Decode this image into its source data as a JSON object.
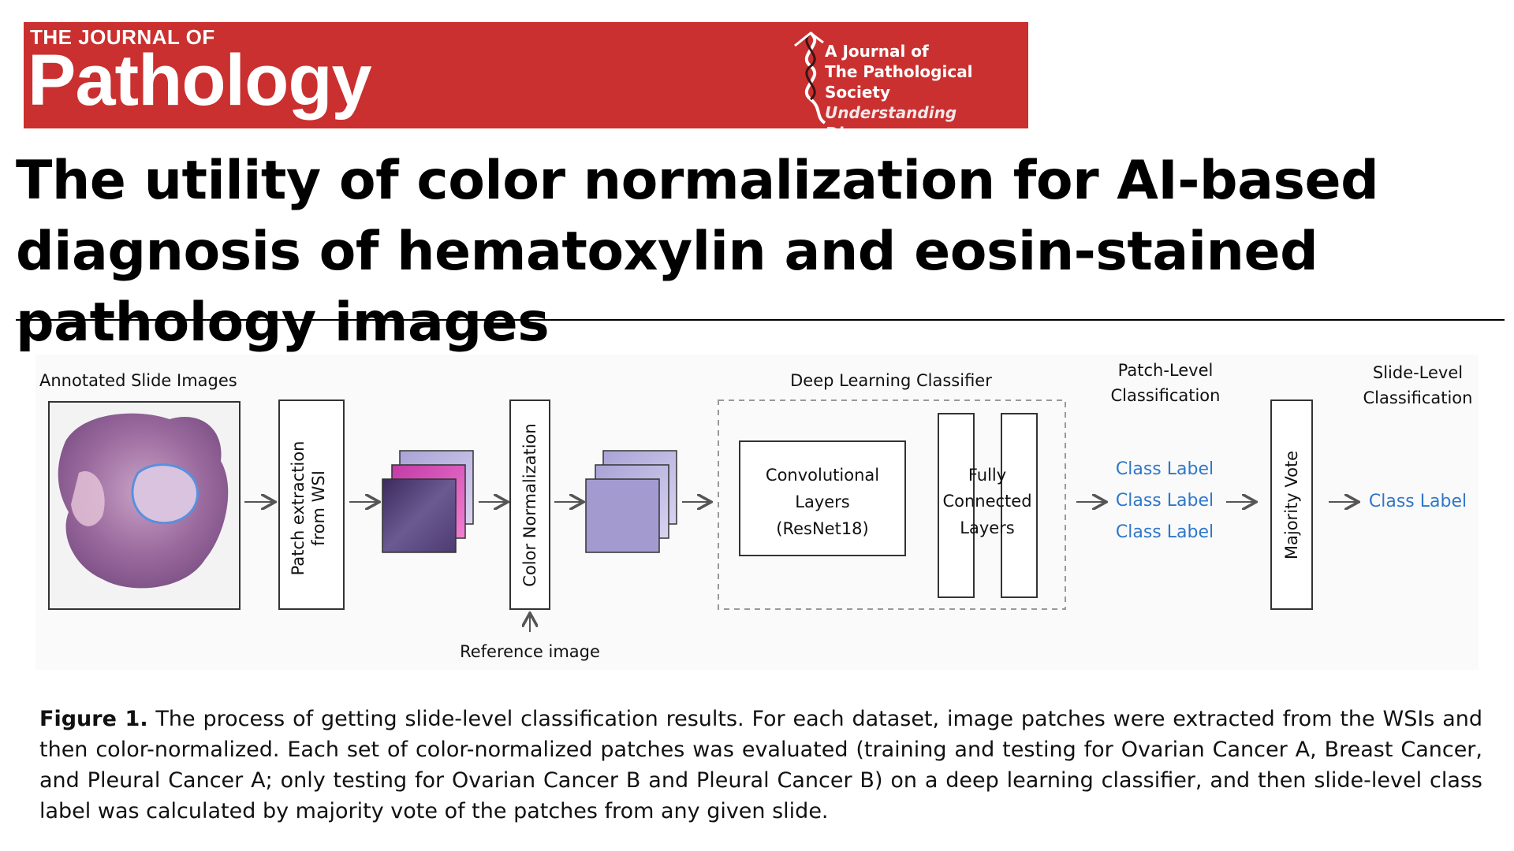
{
  "header": {
    "kicker": "THE JOURNAL OF",
    "journal_name": "Pathology",
    "society_line1": "A Journal of",
    "society_line2": "The Pathological Society",
    "society_tagline": "Understanding Disease",
    "brand_color": "#c9302f"
  },
  "article": {
    "title": "The utility of color normalization for AI-based diagnosis of hematoxylin and eosin-stained pathology images"
  },
  "figure": {
    "annotated_slide_label": "Annotated Slide Images",
    "patch_extraction_line1": "Patch extraction",
    "patch_extraction_line2": "from WSI",
    "color_normalization": "Color Normalization",
    "reference_image": "Reference image",
    "classifier_title": "Deep Learning Classifier",
    "conv_line1": "Convolutional",
    "conv_line2": "Layers",
    "conv_line3": "(ResNet18)",
    "fc_line1": "Fully",
    "fc_line2": "Connected",
    "fc_line3": "Layers",
    "patch_level_line1": "Patch-Level",
    "patch_level_line2": "Classification",
    "patch_class_labels": [
      "Class Label",
      "Class Label",
      "Class Label"
    ],
    "majority_vote": "Majority Vote",
    "slide_level_line1": "Slide-Level",
    "slide_level_line2": "Classification",
    "slide_class_label": "Class Label",
    "label_color": "#2f77c9"
  },
  "caption": {
    "lead": "Figure 1.",
    "text": " The process of getting slide-level classification results. For each dataset, image patches were extracted from the WSIs and then color-normalized. Each set of color-normalized patches was evaluated (training and testing for Ovarian Cancer A, Breast Cancer, and Pleural Cancer A; only testing for Ovarian Cancer B and Pleural Cancer B) on a deep learning classifier, and then slide-level class label was calculated by majority vote of the patches from any given slide."
  }
}
